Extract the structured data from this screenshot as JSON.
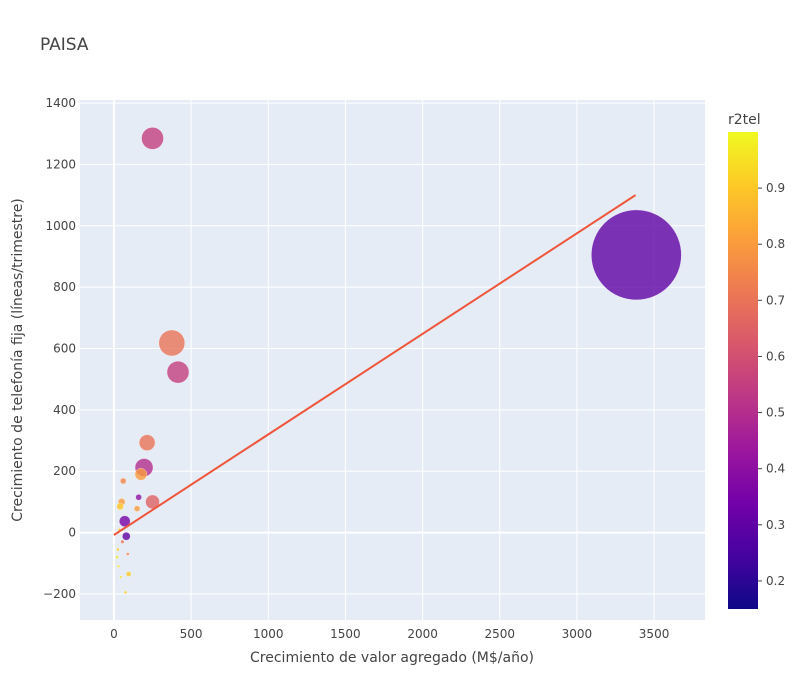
{
  "chart_data": {
    "type": "scatter",
    "title": "PAISA",
    "xlabel": "Crecimiento de valor agregado (M$/año)",
    "ylabel": "Crecimiento de telefonía fija (líneas/trimestre)",
    "xlim": [
      -220,
      3830
    ],
    "ylim": [
      -285,
      1410
    ],
    "xticks": [
      0,
      500,
      1000,
      1500,
      2000,
      2500,
      3000,
      3500
    ],
    "yticks": [
      -200,
      0,
      200,
      400,
      600,
      800,
      1000,
      1200,
      1400
    ],
    "grid": true,
    "color_variable": "r2tel",
    "color_range": [
      0.15,
      1.0
    ],
    "colorbar_ticks": [
      0.2,
      0.3,
      0.4,
      0.5,
      0.6,
      0.7,
      0.8,
      0.9
    ],
    "colorscale": [
      "#0d0887",
      "#46039f",
      "#7201a8",
      "#9c179e",
      "#bd3786",
      "#d8576b",
      "#ed7953",
      "#fb9f3a",
      "#fdca26",
      "#f0f921"
    ],
    "trendline": {
      "color": "#ef553b",
      "points": [
        [
          0,
          -8
        ],
        [
          3380,
          1100
        ]
      ]
    },
    "points": [
      {
        "x": 3385,
        "y": 905,
        "r2tel": 0.3,
        "size": 45
      },
      {
        "x": 250,
        "y": 1285,
        "r2tel": 0.55,
        "size": 11
      },
      {
        "x": 375,
        "y": 618,
        "r2tel": 0.7,
        "size": 13
      },
      {
        "x": 415,
        "y": 523,
        "r2tel": 0.55,
        "size": 11
      },
      {
        "x": 215,
        "y": 293,
        "r2tel": 0.7,
        "size": 8
      },
      {
        "x": 195,
        "y": 212,
        "r2tel": 0.5,
        "size": 9
      },
      {
        "x": 175,
        "y": 190,
        "r2tel": 0.8,
        "size": 6
      },
      {
        "x": 250,
        "y": 100,
        "r2tel": 0.65,
        "size": 7
      },
      {
        "x": 60,
        "y": 168,
        "r2tel": 0.75,
        "size": 3
      },
      {
        "x": 160,
        "y": 115,
        "r2tel": 0.4,
        "size": 3
      },
      {
        "x": 50,
        "y": 100,
        "r2tel": 0.8,
        "size": 3.5
      },
      {
        "x": 40,
        "y": 85,
        "r2tel": 0.9,
        "size": 3.5
      },
      {
        "x": 150,
        "y": 78,
        "r2tel": 0.8,
        "size": 3
      },
      {
        "x": 70,
        "y": 37,
        "r2tel": 0.35,
        "size": 5.5
      },
      {
        "x": 80,
        "y": -12,
        "r2tel": 0.3,
        "size": 4
      },
      {
        "x": 55,
        "y": -30,
        "r2tel": 0.7,
        "size": 1.8
      },
      {
        "x": 90,
        "y": -70,
        "r2tel": 0.75,
        "size": 1.5
      },
      {
        "x": 95,
        "y": -135,
        "r2tel": 0.9,
        "size": 2.5
      },
      {
        "x": 75,
        "y": -195,
        "r2tel": 0.9,
        "size": 1.5
      },
      {
        "x": 25,
        "y": -55,
        "r2tel": 0.9,
        "size": 1.5
      },
      {
        "x": 20,
        "y": -80,
        "r2tel": 0.95,
        "size": 1.5
      },
      {
        "x": 30,
        "y": -110,
        "r2tel": 0.95,
        "size": 1.3
      },
      {
        "x": 35,
        "y": 10,
        "r2tel": 0.9,
        "size": 1.3
      },
      {
        "x": 45,
        "y": -145,
        "r2tel": 0.95,
        "size": 1.3
      }
    ]
  }
}
